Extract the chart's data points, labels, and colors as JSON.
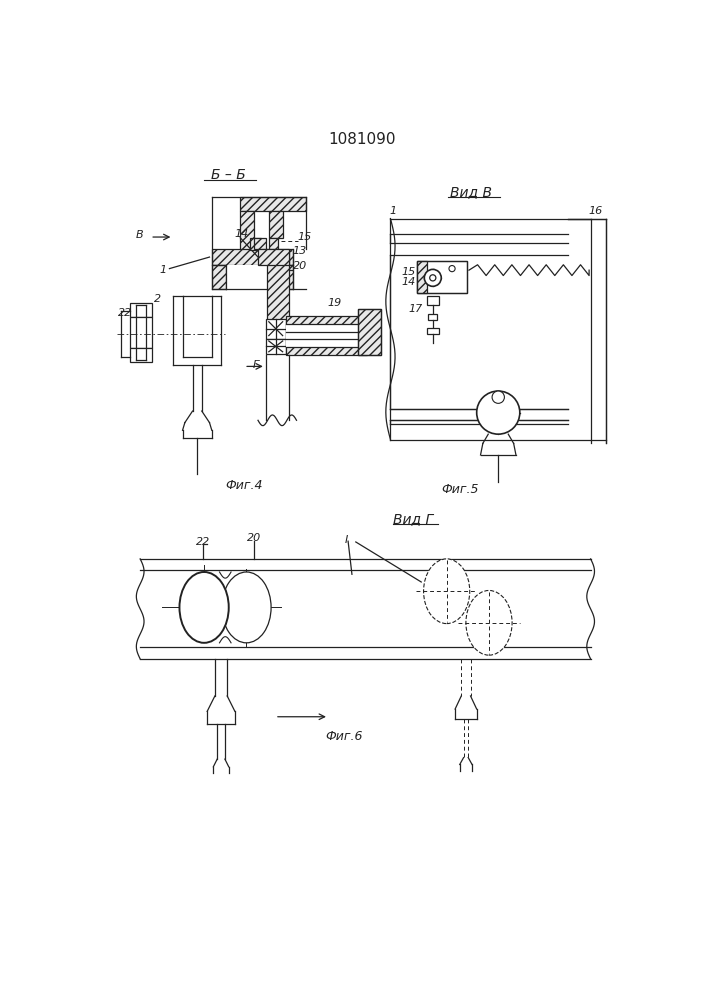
{
  "title": "1081090",
  "bg_color": "#ffffff",
  "line_color": "#222222",
  "fig4_label": "Фиг.4",
  "fig5_label": "Фиг.5",
  "fig6_label": "Фиг.6",
  "sec_bb": "Б – Б",
  "view_b": "Вид В",
  "view_g": "Вид Г",
  "arrow_b": "В",
  "arrow_g": "Г"
}
